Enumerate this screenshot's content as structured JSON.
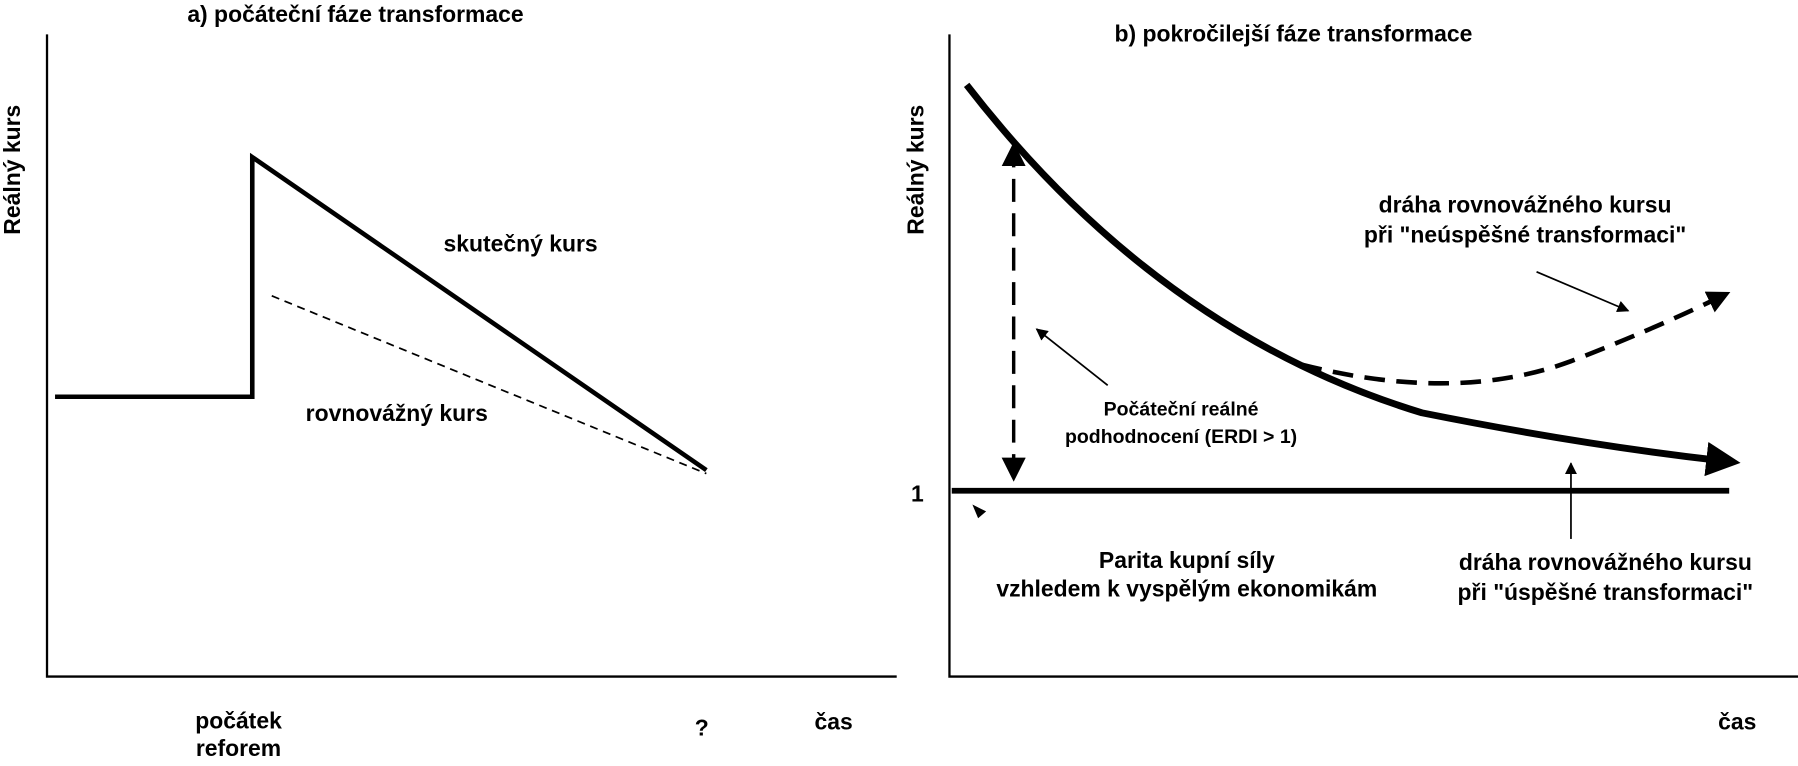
{
  "panels": [
    {
      "title": "a) počáteční fáze transformace",
      "y_axis_label": "Reálný kurs",
      "curve_labels": [
        "skutečný kurs",
        "rovnovážný kurs"
      ],
      "x_labels": [
        "počátek",
        "reforem",
        "?",
        "čas"
      ]
    },
    {
      "title": "b) pokročilejší fáze transformace",
      "y_axis_label": "Reálný kurs",
      "y_mark": "1",
      "annotations": {
        "unsuccessful": [
          "dráha rovnovážného kursu",
          "při \"neúspěšné transformaci\""
        ],
        "undervaluation": [
          "Počáteční reálné",
          "podhodnocení (ERDI > 1)"
        ],
        "ppp": [
          "Parita kupní síly",
          "vzhledem k vyspělým ekonomikám"
        ],
        "successful": [
          "dráha rovnovážného kursu",
          "při \"úspěšné transformaci\""
        ]
      },
      "x_label": "čas"
    }
  ]
}
